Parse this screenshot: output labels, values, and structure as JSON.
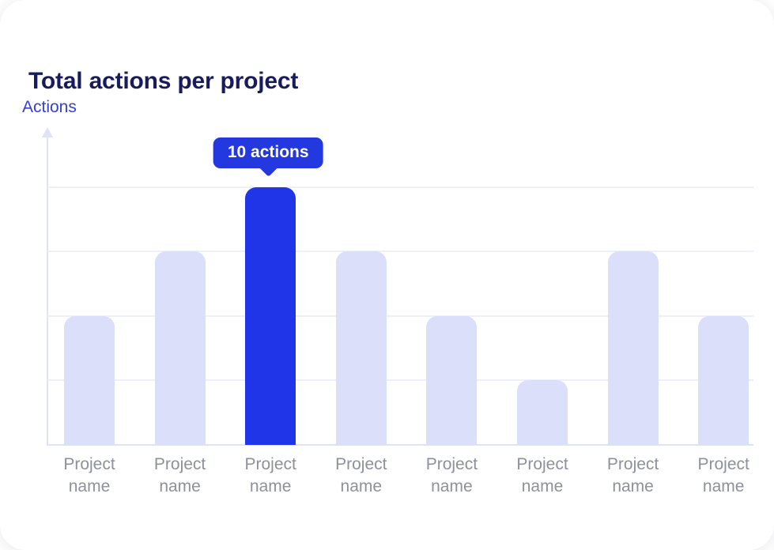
{
  "chart_data": {
    "type": "bar",
    "title": "Total actions per project",
    "ylabel": "Actions",
    "xlabel": "",
    "categories": [
      "Project name",
      "Project name",
      "Project name",
      "Project name",
      "Project name",
      "Project name",
      "Project name",
      "Project name"
    ],
    "values": [
      5,
      7.5,
      10,
      7.5,
      5,
      2.5,
      7.5,
      5
    ],
    "ylim": [
      0,
      10
    ],
    "gridline_values": [
      0,
      2.5,
      5,
      7.5,
      10
    ],
    "grid": "horizontal",
    "legend": "none",
    "highlighted_index": 2,
    "tooltip_label": "10 actions"
  },
  "colors": {
    "card_bg": "#ffffff",
    "title_text": "#181b5c",
    "ylabel_text": "#3240d8",
    "tick_label": "#8c919b",
    "bar": "#dbdffa",
    "bar_highlight": "#2135e8",
    "tooltip_bg": "#2438e0",
    "tooltip_text": "#ffffff",
    "gridline": "#edeffb",
    "axis": "#dfe3f7"
  }
}
